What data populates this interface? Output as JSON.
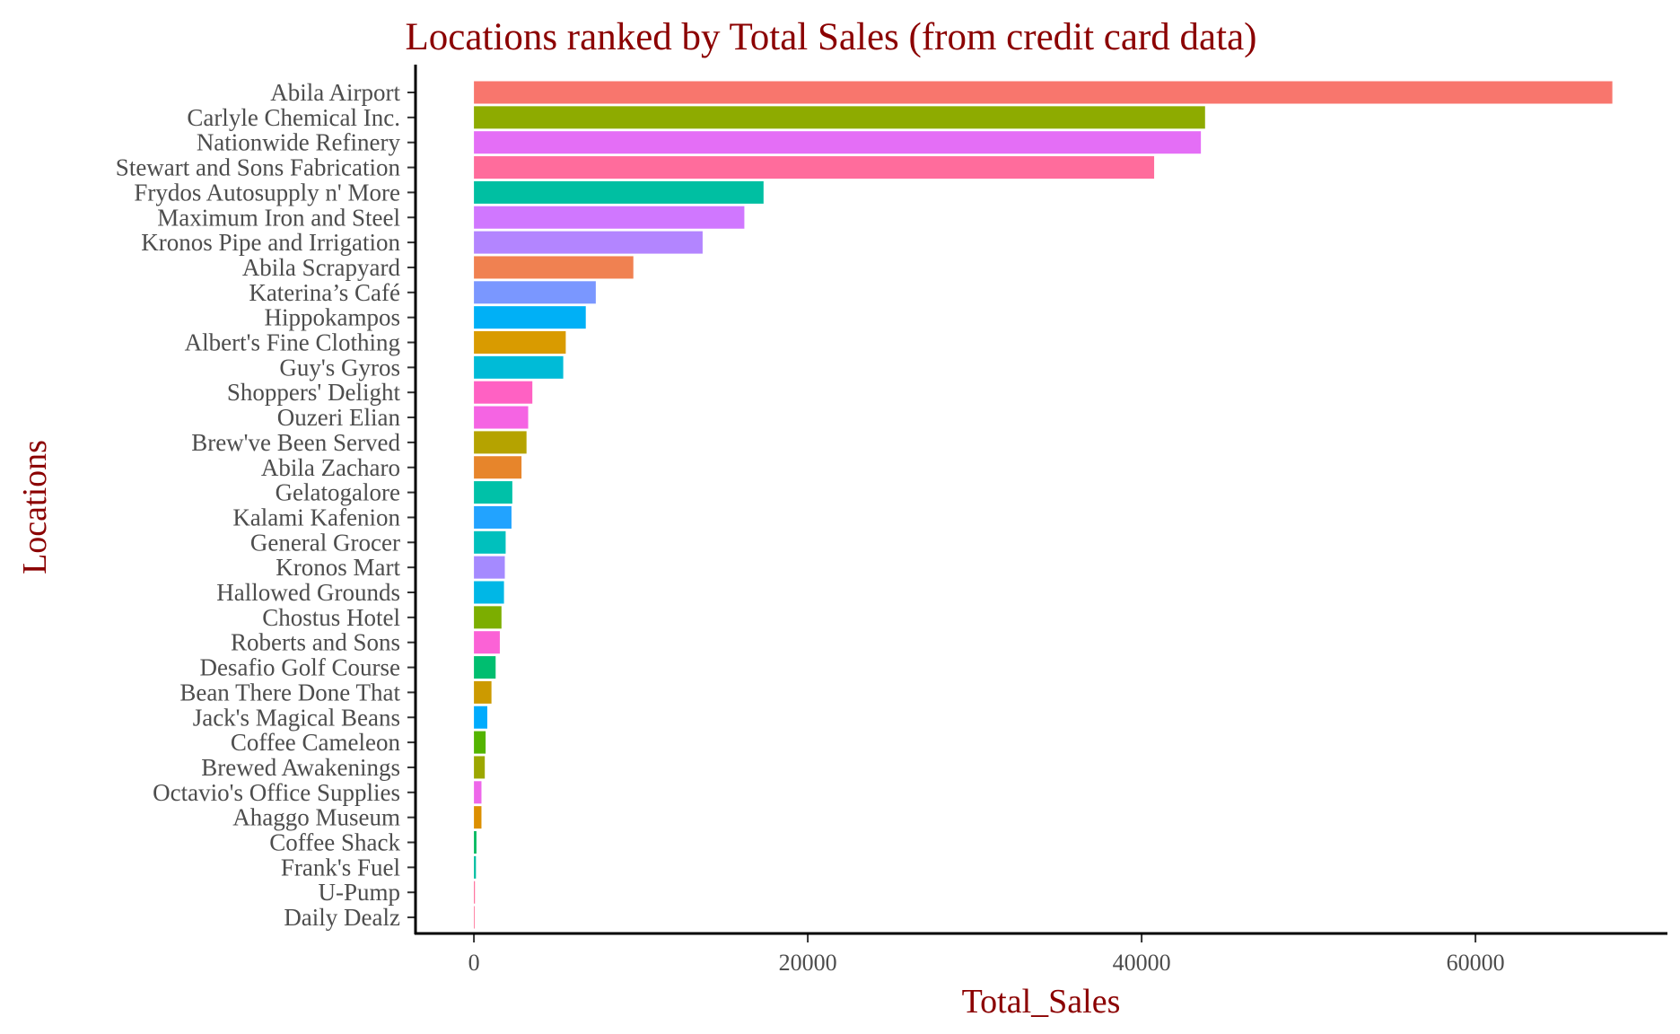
{
  "chart_data": {
    "type": "bar",
    "orientation": "horizontal",
    "title": "Locations ranked by Total Sales (from credit card data)",
    "xlabel": "Total_Sales",
    "ylabel": "Locations",
    "xlim": [
      -3500,
      71500
    ],
    "x_ticks": [
      0,
      20000,
      40000,
      60000
    ],
    "x_tick_labels": [
      "0",
      "20000",
      "40000",
      "60000"
    ],
    "grid": false,
    "legend": "none",
    "title_color": "#8b0000",
    "axis_title_color": "#8b0000",
    "categories": [
      "Abila Airport",
      "Carlyle Chemical Inc.",
      "Nationwide Refinery",
      "Stewart and Sons Fabrication",
      "Frydos Autosupply n' More",
      "Maximum Iron and Steel",
      "Kronos Pipe and Irrigation",
      "Abila Scrapyard",
      "Katerina’s Café",
      "Hippokampos",
      "Albert's Fine Clothing",
      "Guy's Gyros",
      "Shoppers' Delight",
      "Ouzeri Elian",
      "Brew've Been Served",
      "Abila Zacharo",
      "Gelatogalore",
      "Kalami Kafenion",
      "General Grocer",
      "Kronos Mart",
      "Hallowed Grounds",
      "Chostus Hotel",
      "Roberts and Sons",
      "Desafio Golf Course",
      "Bean There Done That",
      "Jack's Magical Beans",
      "Coffee Cameleon",
      "Brewed Awakenings",
      "Octavio's Office Supplies",
      "Ahaggo Museum",
      "Coffee Shack",
      "Frank's Fuel",
      "U-Pump",
      "Daily Dealz"
    ],
    "values": [
      68200,
      43800,
      43550,
      40750,
      17350,
      16200,
      13700,
      9550,
      7300,
      6700,
      5500,
      5350,
      3500,
      3250,
      3150,
      2850,
      2300,
      2250,
      1900,
      1850,
      1800,
      1650,
      1550,
      1300,
      1050,
      800,
      700,
      650,
      450,
      450,
      150,
      120,
      60,
      20
    ],
    "colors": [
      "#F8766D",
      "#8EAB00",
      "#E46EF6",
      "#FF6C9C",
      "#00BFA2",
      "#D077FF",
      "#B385FF",
      "#F08151",
      "#7A97FF",
      "#00B0F6",
      "#D99B00",
      "#00BBD7",
      "#FF61C3",
      "#F564E3",
      "#B5A300",
      "#E7852B",
      "#00C1A8",
      "#22A3FF",
      "#00C0BD",
      "#A58AFF",
      "#00B7E6",
      "#7CAE00",
      "#FB62D6",
      "#00BE70",
      "#CC9A00",
      "#00ABFD",
      "#53B400",
      "#9CA700",
      "#EE67EA",
      "#DC8F00",
      "#00B95E",
      "#00BDA0",
      "#FF6897",
      "#FF6B93"
    ]
  }
}
